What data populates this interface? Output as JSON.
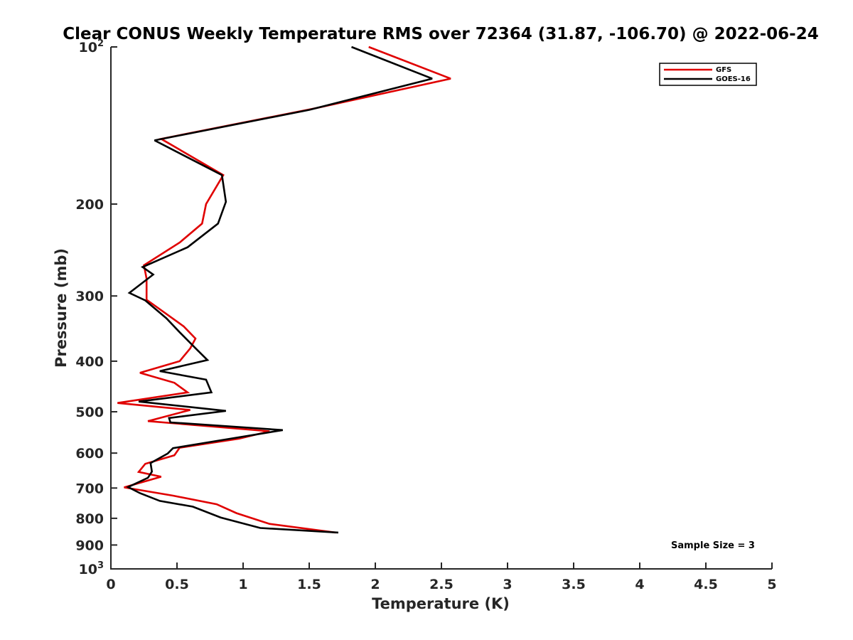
{
  "chart_data": {
    "type": "line",
    "title": "Clear CONUS Weekly Temperature RMS over 72364 (31.87, -106.70) @ 2022-06-24",
    "xlabel": "Temperature (K)",
    "ylabel": "Pressure (mb)",
    "xlim": [
      0,
      5
    ],
    "ylim": [
      100,
      1000
    ],
    "yscale": "log",
    "y_reversed": true,
    "x_ticks": [
      "0",
      "0.5",
      "1",
      "1.5",
      "2",
      "2.5",
      "3",
      "3.5",
      "4",
      "4.5",
      "5"
    ],
    "y_ticks": [
      {
        "value": 100,
        "base": "10",
        "exp": "2"
      },
      {
        "value": 200,
        "label": "200"
      },
      {
        "value": 300,
        "label": "300"
      },
      {
        "value": 400,
        "label": "400"
      },
      {
        "value": 500,
        "label": "500"
      },
      {
        "value": 600,
        "label": "600"
      },
      {
        "value": 700,
        "label": "700"
      },
      {
        "value": 800,
        "label": "800"
      },
      {
        "value": 900,
        "label": "900"
      },
      {
        "value": 1000,
        "base": "10",
        "exp": "3"
      }
    ],
    "grid": false,
    "legend_position": "top-right",
    "annotation": "Sample Size = 3",
    "series": [
      {
        "name": "GFS",
        "color": "#e00000",
        "points": [
          [
            1.95,
            100
          ],
          [
            2.57,
            115
          ],
          [
            1.55,
            131
          ],
          [
            0.38,
            150
          ],
          [
            0.85,
            176
          ],
          [
            0.72,
            200
          ],
          [
            0.69,
            218
          ],
          [
            0.52,
            237
          ],
          [
            0.25,
            262
          ],
          [
            0.27,
            278
          ],
          [
            0.27,
            305
          ],
          [
            0.55,
            343
          ],
          [
            0.64,
            362
          ],
          [
            0.6,
            378
          ],
          [
            0.52,
            400
          ],
          [
            0.22,
            421
          ],
          [
            0.48,
            440
          ],
          [
            0.58,
            459
          ],
          [
            0.05,
            481
          ],
          [
            0.6,
            496
          ],
          [
            0.28,
            521
          ],
          [
            1.2,
            545
          ],
          [
            0.97,
            563
          ],
          [
            0.52,
            586
          ],
          [
            0.48,
            606
          ],
          [
            0.26,
            629
          ],
          [
            0.21,
            652
          ],
          [
            0.38,
            666
          ],
          [
            0.1,
            698
          ],
          [
            0.47,
            724
          ],
          [
            0.8,
            752
          ],
          [
            0.95,
            782
          ],
          [
            1.2,
            820
          ],
          [
            1.7,
            852
          ]
        ]
      },
      {
        "name": "GOES-16",
        "color": "#000000",
        "points": [
          [
            1.82,
            100
          ],
          [
            2.43,
            115
          ],
          [
            1.5,
            132
          ],
          [
            0.33,
            151
          ],
          [
            0.84,
            176
          ],
          [
            0.87,
            198
          ],
          [
            0.81,
            218
          ],
          [
            0.58,
            242
          ],
          [
            0.24,
            264
          ],
          [
            0.32,
            273
          ],
          [
            0.14,
            296
          ],
          [
            0.26,
            306
          ],
          [
            0.42,
            331
          ],
          [
            0.52,
            352
          ],
          [
            0.65,
            380
          ],
          [
            0.73,
            398
          ],
          [
            0.37,
            418
          ],
          [
            0.72,
            434
          ],
          [
            0.76,
            459
          ],
          [
            0.21,
            478
          ],
          [
            0.87,
            498
          ],
          [
            0.44,
            514
          ],
          [
            0.45,
            524
          ],
          [
            1.3,
            542
          ],
          [
            0.47,
            587
          ],
          [
            0.43,
            601
          ],
          [
            0.3,
            627
          ],
          [
            0.31,
            651
          ],
          [
            0.28,
            669
          ],
          [
            0.13,
            697
          ],
          [
            0.22,
            716
          ],
          [
            0.37,
            741
          ],
          [
            0.62,
            760
          ],
          [
            0.83,
            797
          ],
          [
            1.13,
            835
          ],
          [
            1.72,
            852
          ]
        ]
      }
    ]
  }
}
